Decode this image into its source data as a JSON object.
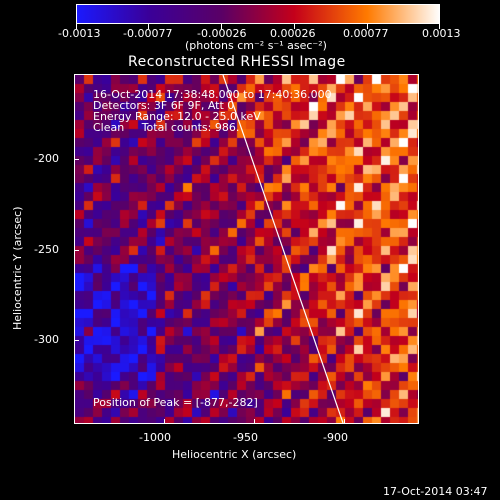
{
  "colorbar": {
    "ticks": [
      "-0.0013",
      "-0.00077",
      "-0.00026",
      "0.00026",
      "0.00077",
      "0.0013"
    ],
    "unit_label": "(photons cm⁻² s⁻¹ asec⁻²)",
    "colors": [
      "#1a1aff",
      "#3a0099",
      "#5a0066",
      "#c4001a",
      "#ff7a00",
      "#ffffff"
    ]
  },
  "title": "Reconstructed RHESSI Image",
  "annotation": {
    "line1": "16-Oct-2014 17:38:48.000 to 17:40:36.000",
    "line2": "Detectors: 3F 6F 9F, Att 0",
    "line3": "Energy Range: 12.0 - 25.0 keV",
    "line4": "Clean     Total counts: 986."
  },
  "peak_text": "Position of Peak = [-877,-282]",
  "axes": {
    "xlabel": "Heliocentric X (arcsec)",
    "ylabel": "Heliocentric Y (arcsec)",
    "xticks": [
      "-1000",
      "-950",
      "-900"
    ],
    "yticks": [
      "-200",
      "-250",
      "-300"
    ]
  },
  "footer_timestamp": "17-Oct-2014 03:47"
}
